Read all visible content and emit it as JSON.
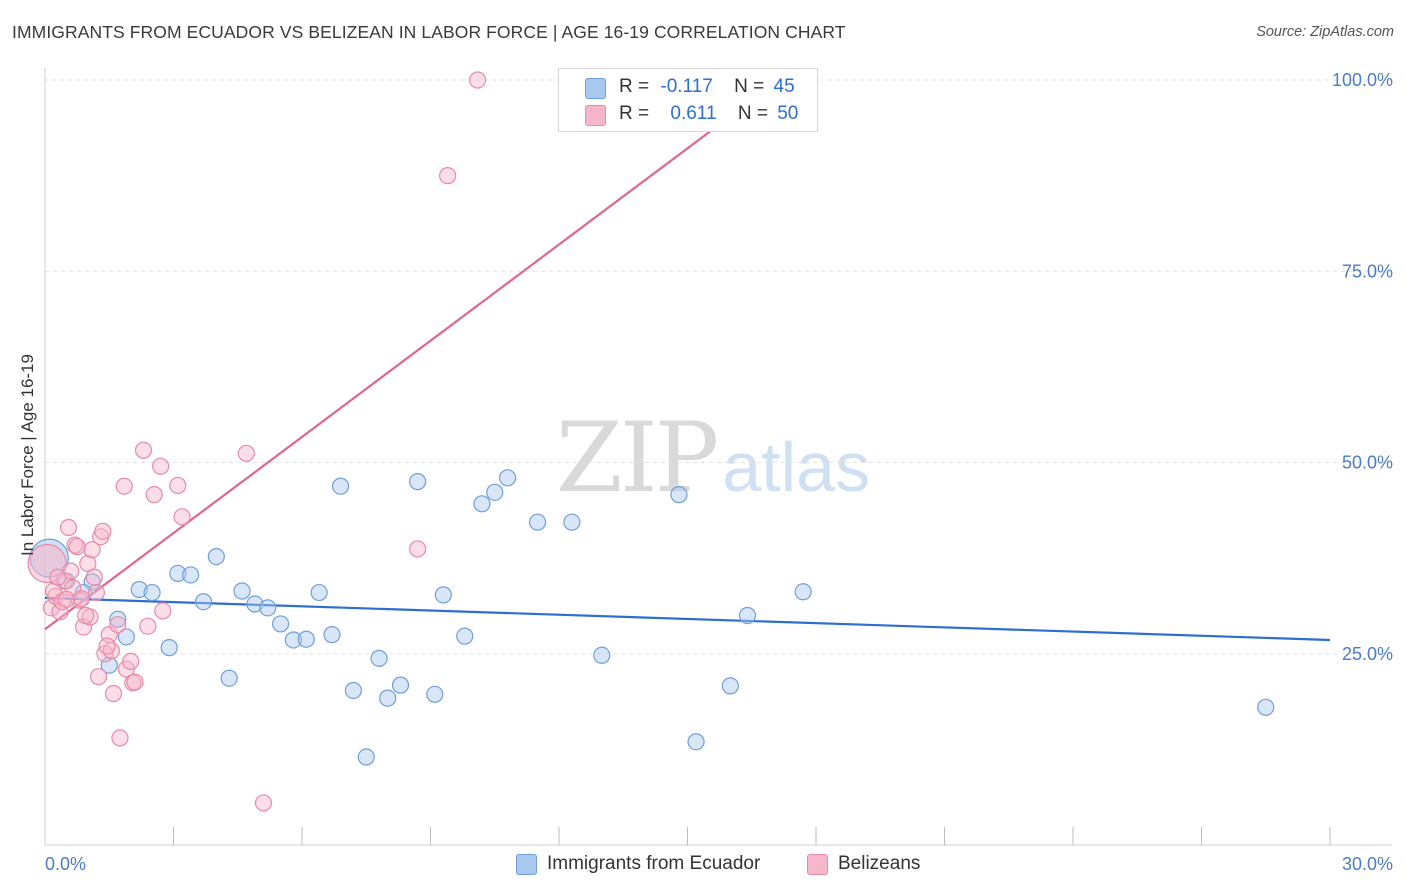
{
  "header": {
    "title": "IMMIGRANTS FROM ECUADOR VS BELIZEAN IN LABOR FORCE | AGE 16-19 CORRELATION CHART",
    "source": "Source: ZipAtlas.com"
  },
  "watermark": {
    "zip": "ZIP",
    "atlas": "atlas"
  },
  "legend": {
    "rows": [
      {
        "r_label": "R =",
        "r_value": "-0.117",
        "n_label": "N =",
        "n_value": "45",
        "color": "#a9c8f0",
        "border": "#6f9fdc"
      },
      {
        "r_label": "R =",
        "r_value": "0.611",
        "n_label": "N =",
        "n_value": "50",
        "color": "#f7b6c9",
        "border": "#e98aa8"
      }
    ]
  },
  "bottom_legend": [
    {
      "label": "Immigrants from Ecuador",
      "color": "#a9c8f0",
      "border": "#6f9fdc"
    },
    {
      "label": "Belizeans",
      "color": "#f7b6c9",
      "border": "#e98aa8"
    }
  ],
  "chart_data": {
    "type": "scatter",
    "title": "IMMIGRANTS FROM ECUADOR VS BELIZEAN IN LABOR FORCE | AGE 16-19 CORRELATION CHART",
    "xlabel": "",
    "ylabel": "In Labor Force | Age 16-19",
    "xlim": [
      0,
      30
    ],
    "ylim": [
      0,
      100
    ],
    "x_tick_labels": [
      "0.0%",
      "30.0%"
    ],
    "y_tick_labels": [
      "25.0%",
      "50.0%",
      "75.0%",
      "100.0%"
    ],
    "y_ticks": [
      25,
      50,
      75,
      100
    ],
    "x_minor_ticks": [
      3,
      6,
      9,
      12,
      15,
      18,
      21,
      24,
      27,
      30
    ],
    "grid": true,
    "series": [
      {
        "name": "Immigrants from Ecuador",
        "color": "#a9c8f0",
        "stroke": "#6f9fdc",
        "trend": {
          "x": [
            0,
            30
          ],
          "y": [
            32.3,
            26.8
          ],
          "color": "#2c6fd1"
        },
        "points": [
          [
            0.1,
            37.5,
            "big"
          ],
          [
            0.5,
            34.5
          ],
          [
            1.1,
            34.4
          ],
          [
            1.5,
            23.5
          ],
          [
            1.7,
            29.5
          ],
          [
            1.9,
            27.2
          ],
          [
            2.2,
            33.4
          ],
          [
            2.5,
            33.0
          ],
          [
            2.9,
            25.8
          ],
          [
            3.1,
            35.5
          ],
          [
            3.4,
            35.3
          ],
          [
            3.7,
            31.8
          ],
          [
            4.0,
            37.7
          ],
          [
            4.3,
            21.8
          ],
          [
            4.6,
            33.2
          ],
          [
            4.9,
            31.5
          ],
          [
            5.2,
            31.0
          ],
          [
            5.5,
            28.9
          ],
          [
            5.8,
            26.8
          ],
          [
            6.1,
            26.9
          ],
          [
            6.4,
            33.0
          ],
          [
            6.7,
            27.5
          ],
          [
            6.9,
            46.9
          ],
          [
            7.2,
            20.2
          ],
          [
            7.5,
            11.5
          ],
          [
            7.8,
            24.4
          ],
          [
            8.0,
            19.2
          ],
          [
            8.3,
            20.9
          ],
          [
            8.7,
            47.5
          ],
          [
            9.1,
            19.7
          ],
          [
            9.3,
            32.7
          ],
          [
            9.8,
            27.3
          ],
          [
            10.2,
            44.6
          ],
          [
            10.5,
            46.1
          ],
          [
            10.8,
            48.0
          ],
          [
            11.5,
            42.2
          ],
          [
            12.3,
            42.2
          ],
          [
            13.0,
            24.8
          ],
          [
            14.8,
            45.8
          ],
          [
            15.2,
            13.5
          ],
          [
            16.0,
            20.8
          ],
          [
            16.4,
            30.0
          ],
          [
            17.7,
            33.1
          ],
          [
            28.5,
            18.0
          ],
          [
            0.9,
            33.0
          ]
        ]
      },
      {
        "name": "Belizeans",
        "color": "#f7b6c9",
        "stroke": "#e98aa8",
        "trend": {
          "x": [
            0,
            15.7
          ],
          "y": [
            28.2,
            94.0
          ],
          "color": "#e0658e"
        },
        "points": [
          [
            0.05,
            36.8,
            "big"
          ],
          [
            0.15,
            31.0
          ],
          [
            0.25,
            32.5
          ],
          [
            0.35,
            30.5
          ],
          [
            0.45,
            34.5
          ],
          [
            0.55,
            41.5
          ],
          [
            0.6,
            35.8
          ],
          [
            0.7,
            39.2
          ],
          [
            0.8,
            32.0
          ],
          [
            0.9,
            28.5
          ],
          [
            1.0,
            36.8
          ],
          [
            1.05,
            29.8
          ],
          [
            1.1,
            38.6
          ],
          [
            1.2,
            33.0
          ],
          [
            1.25,
            22.0
          ],
          [
            1.3,
            40.3
          ],
          [
            1.35,
            41.0
          ],
          [
            1.4,
            25.0
          ],
          [
            1.5,
            27.5
          ],
          [
            1.55,
            25.4
          ],
          [
            1.6,
            19.8
          ],
          [
            1.7,
            28.8
          ],
          [
            1.75,
            14.0
          ],
          [
            1.85,
            46.9
          ],
          [
            1.9,
            23.0
          ],
          [
            2.0,
            24.0
          ],
          [
            2.05,
            21.2
          ],
          [
            2.1,
            21.3
          ],
          [
            2.3,
            51.6
          ],
          [
            2.4,
            28.6
          ],
          [
            2.55,
            45.8
          ],
          [
            2.7,
            49.5
          ],
          [
            2.75,
            30.6
          ],
          [
            3.1,
            47.0
          ],
          [
            3.2,
            42.9
          ],
          [
            4.7,
            51.2
          ],
          [
            5.1,
            5.5
          ],
          [
            8.7,
            38.7
          ],
          [
            9.4,
            87.5
          ],
          [
            10.1,
            100.0
          ],
          [
            0.2,
            33.2
          ],
          [
            0.3,
            35.0
          ],
          [
            0.4,
            31.8
          ],
          [
            0.65,
            33.6
          ],
          [
            0.75,
            39.0
          ],
          [
            0.85,
            32.2
          ],
          [
            0.95,
            30.0
          ],
          [
            1.15,
            35.0
          ],
          [
            1.45,
            26.0
          ],
          [
            0.5,
            32.1
          ]
        ]
      }
    ]
  }
}
